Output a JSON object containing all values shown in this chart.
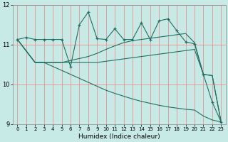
{
  "bg_color": "#c8eae6",
  "line_color": "#1f7060",
  "grid_color_v": "#f08080",
  "grid_color_h": "#f08080",
  "xlabel": "Humidex (Indice chaleur)",
  "xlim": [
    -0.5,
    23.5
  ],
  "ylim": [
    9,
    12
  ],
  "yticks": [
    9,
    10,
    11,
    12
  ],
  "xticks": [
    0,
    1,
    2,
    3,
    4,
    5,
    6,
    7,
    8,
    9,
    10,
    11,
    12,
    13,
    14,
    15,
    16,
    17,
    18,
    19,
    20,
    21,
    22,
    23
  ],
  "series": [
    {
      "x": [
        0,
        1,
        2,
        3,
        4,
        5,
        6,
        7,
        8,
        9,
        10,
        11,
        12,
        13,
        14,
        15,
        16,
        17,
        18,
        19,
        20,
        21,
        22,
        23
      ],
      "y": [
        11.13,
        11.18,
        11.13,
        11.13,
        11.13,
        11.13,
        10.45,
        11.5,
        11.82,
        11.15,
        11.13,
        11.4,
        11.13,
        11.13,
        11.55,
        11.13,
        11.6,
        11.65,
        11.35,
        11.07,
        11.02,
        10.25,
        9.55,
        9.05
      ],
      "marker": "+"
    },
    {
      "x": [
        0,
        2,
        3,
        4,
        5,
        6,
        7,
        8,
        9,
        10,
        11,
        12,
        13,
        14,
        15,
        16,
        17,
        18,
        19,
        20,
        21,
        22,
        23
      ],
      "y": [
        11.13,
        10.55,
        10.55,
        10.55,
        10.55,
        10.6,
        10.65,
        10.7,
        10.78,
        10.88,
        10.97,
        11.05,
        11.1,
        11.13,
        11.16,
        11.19,
        11.22,
        11.25,
        11.28,
        11.05,
        10.25,
        10.22,
        9.05
      ],
      "marker": null
    },
    {
      "x": [
        0,
        2,
        3,
        4,
        5,
        6,
        7,
        8,
        9,
        10,
        11,
        12,
        13,
        14,
        15,
        16,
        17,
        18,
        19,
        20,
        21,
        22,
        23
      ],
      "y": [
        11.13,
        10.55,
        10.55,
        10.55,
        10.55,
        10.55,
        10.55,
        10.55,
        10.55,
        10.58,
        10.61,
        10.64,
        10.67,
        10.7,
        10.73,
        10.76,
        10.79,
        10.82,
        10.85,
        10.88,
        10.25,
        10.22,
        9.05
      ],
      "marker": null
    },
    {
      "x": [
        0,
        2,
        3,
        4,
        5,
        6,
        7,
        8,
        9,
        10,
        11,
        12,
        13,
        14,
        15,
        16,
        17,
        18,
        19,
        20,
        21,
        22,
        23
      ],
      "y": [
        11.13,
        10.55,
        10.55,
        10.45,
        10.35,
        10.25,
        10.15,
        10.05,
        9.95,
        9.85,
        9.77,
        9.7,
        9.63,
        9.57,
        9.52,
        9.47,
        9.43,
        9.4,
        9.37,
        9.35,
        9.2,
        9.1,
        9.05
      ],
      "marker": null
    }
  ]
}
